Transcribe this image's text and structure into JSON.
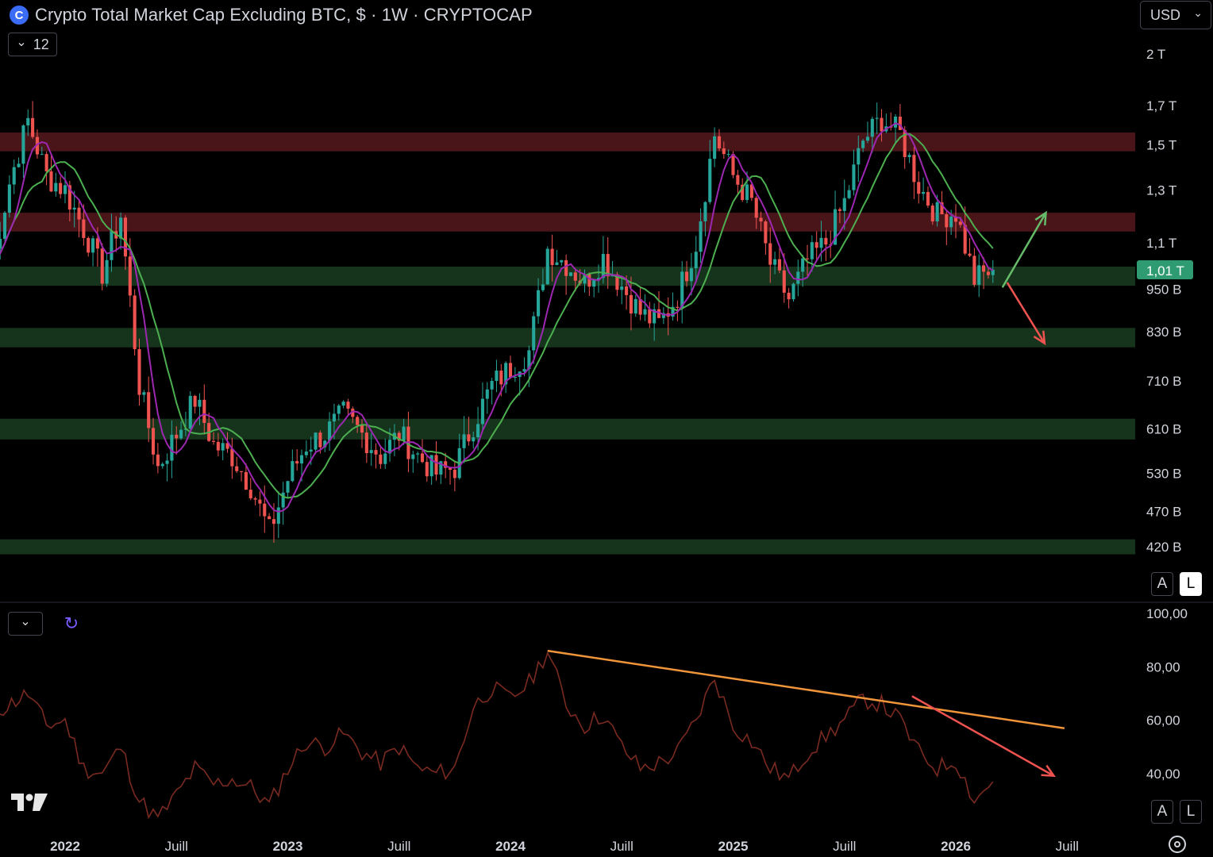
{
  "header": {
    "title": "Crypto Total Market Cap Excluding BTC, $ · 1W · CRYPTOCAP",
    "logo_letter": "C",
    "collapse_count": "12",
    "currency": "USD",
    "currency_caret": "⌄",
    "collapse_caret": "⌄"
  },
  "price_scale_buttons": {
    "auto": "A",
    "log": "L"
  },
  "rsi_scale_buttons": {
    "auto": "A",
    "log": "L"
  },
  "colors": {
    "up": "#26a69a",
    "down": "#ef5350",
    "ma_fast": "#9c27b0",
    "ma_slow": "#4caf50",
    "resistance_zone": "#4a1519",
    "support_zone": "#16341c",
    "rsi": "#7a2a20",
    "trendline": "#f0953a",
    "arrow_up": "#66bb6a",
    "arrow_down": "#ef5350",
    "price_tag": "#2f9b73"
  },
  "chart_data": [
    {
      "type": "candlestick",
      "title": "Crypto Total Market Cap Excluding BTC, $ · 1W · CRYPTOCAP",
      "scale": "log",
      "x_range": [
        "2021-09",
        "2026-10"
      ],
      "ylim": [
        400000000000,
        2100000000000
      ],
      "y_ticks": [
        {
          "value": 2000000000000,
          "label": "2 T"
        },
        {
          "value": 1700000000000,
          "label": "1,7 T"
        },
        {
          "value": 1500000000000,
          "label": "1,5 T"
        },
        {
          "value": 1300000000000,
          "label": "1,3 T"
        },
        {
          "value": 1100000000000,
          "label": "1,1 T"
        },
        {
          "value": 950000000000,
          "label": "950 B"
        },
        {
          "value": 830000000000,
          "label": "830 B"
        },
        {
          "value": 710000000000,
          "label": "710 B"
        },
        {
          "value": 610000000000,
          "label": "610 B"
        },
        {
          "value": 530000000000,
          "label": "530 B"
        },
        {
          "value": 470000000000,
          "label": "470 B"
        },
        {
          "value": 420000000000,
          "label": "420 B"
        }
      ],
      "current_price": {
        "value": 1010000000000,
        "label": "1,01 T"
      },
      "x_ticks": [
        {
          "date": "2022-01",
          "label": "2022",
          "bold": true
        },
        {
          "date": "2022-07",
          "label": "Juill",
          "bold": false
        },
        {
          "date": "2023-01",
          "label": "2023",
          "bold": true
        },
        {
          "date": "2023-07",
          "label": "Juill",
          "bold": false
        },
        {
          "date": "2024-01",
          "label": "2024",
          "bold": true
        },
        {
          "date": "2024-07",
          "label": "Juill",
          "bold": false
        },
        {
          "date": "2025-01",
          "label": "2025",
          "bold": true
        },
        {
          "date": "2025-07",
          "label": "Juill",
          "bold": false
        },
        {
          "date": "2026-01",
          "label": "2026",
          "bold": true
        },
        {
          "date": "2026-07",
          "label": "Juill",
          "bold": false
        }
      ],
      "series_close": [
        [
          "2021-09",
          1000000000000
        ],
        [
          "2021-10",
          1330000000000
        ],
        [
          "2021-11",
          1620000000000
        ],
        [
          "2021-12",
          1360000000000
        ],
        [
          "2022-01",
          1300000000000
        ],
        [
          "2022-02",
          1150000000000
        ],
        [
          "2022-03",
          1000000000000
        ],
        [
          "2022-04",
          1200000000000
        ],
        [
          "2022-05",
          700000000000
        ],
        [
          "2022-06",
          540000000000
        ],
        [
          "2022-07",
          600000000000
        ],
        [
          "2022-08",
          670000000000
        ],
        [
          "2022-09",
          580000000000
        ],
        [
          "2022-10",
          560000000000
        ],
        [
          "2022-11",
          510000000000
        ],
        [
          "2022-12",
          440000000000
        ],
        [
          "2023-01",
          520000000000
        ],
        [
          "2023-02",
          580000000000
        ],
        [
          "2023-03",
          600000000000
        ],
        [
          "2023-04",
          640000000000
        ],
        [
          "2023-05",
          600000000000
        ],
        [
          "2023-06",
          560000000000
        ],
        [
          "2023-07",
          600000000000
        ],
        [
          "2023-08",
          560000000000
        ],
        [
          "2023-09",
          530000000000
        ],
        [
          "2023-10",
          540000000000
        ],
        [
          "2023-11",
          620000000000
        ],
        [
          "2023-12",
          700000000000
        ],
        [
          "2024-01",
          740000000000
        ],
        [
          "2024-02",
          780000000000
        ],
        [
          "2024-03",
          1080000000000
        ],
        [
          "2024-04",
          1030000000000
        ],
        [
          "2024-05",
          970000000000
        ],
        [
          "2024-06",
          1050000000000
        ],
        [
          "2024-07",
          960000000000
        ],
        [
          "2024-08",
          880000000000
        ],
        [
          "2024-09",
          850000000000
        ],
        [
          "2024-10",
          930000000000
        ],
        [
          "2024-11",
          1100000000000
        ],
        [
          "2024-12",
          1550000000000
        ],
        [
          "2025-01",
          1360000000000
        ],
        [
          "2025-02",
          1250000000000
        ],
        [
          "2025-03",
          1030000000000
        ],
        [
          "2025-04",
          920000000000
        ],
        [
          "2025-05",
          1040000000000
        ],
        [
          "2025-06",
          1100000000000
        ],
        [
          "2025-07",
          1250000000000
        ],
        [
          "2025-08",
          1520000000000
        ],
        [
          "2025-09",
          1630000000000
        ],
        [
          "2025-10",
          1550000000000
        ],
        [
          "2025-11",
          1320000000000
        ],
        [
          "2025-12",
          1200000000000
        ],
        [
          "2026-01",
          1210000000000
        ],
        [
          "2026-02",
          980000000000
        ],
        [
          "2026-03",
          1010000000000
        ]
      ],
      "zones": [
        {
          "kind": "resistance",
          "from": 1470000000000,
          "to": 1560000000000
        },
        {
          "kind": "resistance",
          "from": 1140000000000,
          "to": 1210000000000
        },
        {
          "kind": "support",
          "from": 960000000000,
          "to": 1020000000000
        },
        {
          "kind": "support",
          "from": 790000000000,
          "to": 840000000000
        },
        {
          "kind": "support",
          "from": 590000000000,
          "to": 630000000000
        },
        {
          "kind": "support",
          "from": 410000000000,
          "to": 430000000000
        }
      ],
      "annotations": [
        {
          "kind": "arrow-up",
          "from": [
            "2026-04",
            950000000000
          ],
          "to": [
            "2026-06",
            1200000000000
          ]
        },
        {
          "kind": "arrow-down",
          "from": [
            "2026-04",
            960000000000
          ],
          "to": [
            "2026-07",
            800000000000
          ]
        }
      ]
    },
    {
      "type": "line",
      "series": [
        {
          "name": "",
          "values": []
        }
      ],
      "ylim": [
        20,
        100
      ],
      "y_ticks": [
        {
          "value": 100,
          "label": "100,00"
        },
        {
          "value": 80,
          "label": "80,00"
        },
        {
          "value": 60,
          "label": "60,00"
        },
        {
          "value": 40,
          "label": "40,00"
        }
      ],
      "points": [
        [
          "2021-09",
          62
        ],
        [
          "2021-11",
          70
        ],
        [
          "2021-12",
          58
        ],
        [
          "2022-01",
          60
        ],
        [
          "2022-02",
          42
        ],
        [
          "2022-03",
          40
        ],
        [
          "2022-04",
          50
        ],
        [
          "2022-05",
          30
        ],
        [
          "2022-06",
          23
        ],
        [
          "2022-07",
          32
        ],
        [
          "2022-08",
          42
        ],
        [
          "2022-09",
          36
        ],
        [
          "2022-10",
          38
        ],
        [
          "2022-11",
          35
        ],
        [
          "2022-12",
          28
        ],
        [
          "2023-01",
          42
        ],
        [
          "2023-02",
          52
        ],
        [
          "2023-03",
          50
        ],
        [
          "2023-04",
          55
        ],
        [
          "2023-05",
          48
        ],
        [
          "2023-06",
          44
        ],
        [
          "2023-07",
          50
        ],
        [
          "2023-08",
          42
        ],
        [
          "2023-09",
          40
        ],
        [
          "2023-10",
          42
        ],
        [
          "2023-11",
          65
        ],
        [
          "2023-12",
          72
        ],
        [
          "2024-01",
          68
        ],
        [
          "2024-02",
          74
        ],
        [
          "2024-03",
          86
        ],
        [
          "2024-04",
          66
        ],
        [
          "2024-05",
          58
        ],
        [
          "2024-06",
          62
        ],
        [
          "2024-07",
          50
        ],
        [
          "2024-08",
          42
        ],
        [
          "2024-09",
          44
        ],
        [
          "2024-10",
          48
        ],
        [
          "2024-11",
          60
        ],
        [
          "2024-12",
          76
        ],
        [
          "2025-01",
          58
        ],
        [
          "2025-02",
          52
        ],
        [
          "2025-03",
          42
        ],
        [
          "2025-04",
          38
        ],
        [
          "2025-05",
          48
        ],
        [
          "2025-06",
          54
        ],
        [
          "2025-07",
          60
        ],
        [
          "2025-08",
          68
        ],
        [
          "2025-09",
          66
        ],
        [
          "2025-10",
          60
        ],
        [
          "2025-11",
          48
        ],
        [
          "2025-12",
          42
        ],
        [
          "2026-01",
          45
        ],
        [
          "2026-02",
          30
        ],
        [
          "2026-03",
          37
        ]
      ],
      "trendline": {
        "from": [
          "2024-03",
          86
        ],
        "to": [
          "2026-06",
          57
        ]
      },
      "annotations": [
        {
          "kind": "arrow-down",
          "from": [
            "2025-10",
            69
          ],
          "to": [
            "2026-05",
            38
          ]
        }
      ]
    }
  ]
}
